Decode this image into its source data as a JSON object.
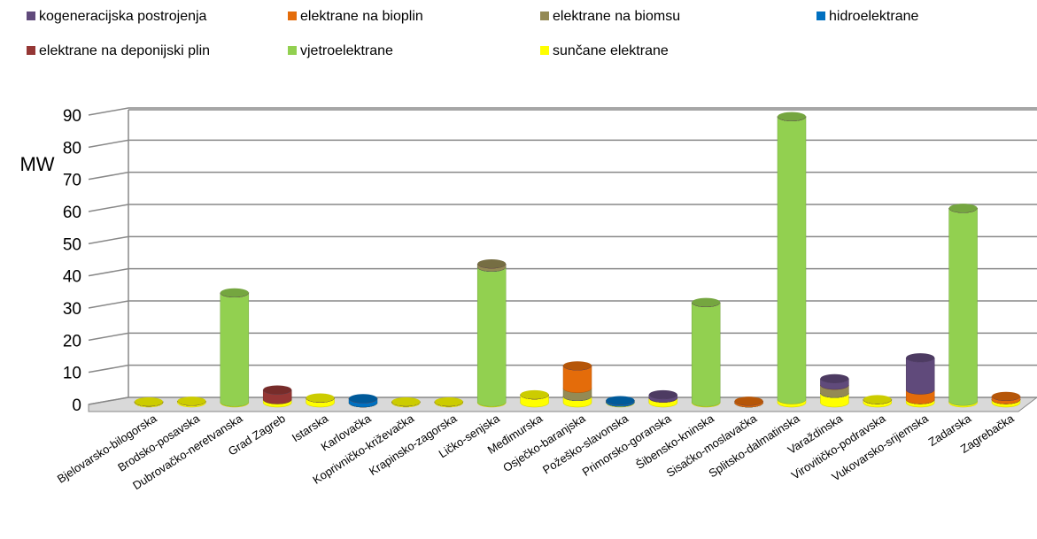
{
  "chart_data": {
    "type": "bar3d-stacked",
    "y_label": "MW",
    "categories": [
      "Bjelovarsko-bilogorska",
      "Brodsko-posavska",
      "Dubrovačko-neretvanska",
      "Grad Zagreb",
      "Istarska",
      "Karlovačka",
      "Koprivničko-križevačka",
      "Krapinsko-zagorska",
      "Ličko-senjska",
      "Međimurska",
      "Osječko-baranjska",
      "Požeško-slavonska",
      "Primorsko-goranska",
      "Šibensko-kninska",
      "Sisačko-moslavačka",
      "Splitsko-dalmatinska",
      "Varaždinska",
      "Virovitičko-podravska",
      "Vukovarsko-srijemska",
      "Zadarska",
      "Zagrebačka"
    ],
    "series": [
      {
        "name": "kogeneracijska postrojenja",
        "color": "#604a7b",
        "values": [
          0,
          0,
          0,
          0,
          0,
          0,
          0,
          0,
          0,
          0,
          0,
          0,
          1,
          0,
          0,
          0,
          2,
          0,
          10,
          0,
          0
        ]
      },
      {
        "name": "elektrane na bioplin",
        "color": "#e46c0a",
        "values": [
          0,
          0,
          0,
          0,
          0,
          0,
          0,
          0,
          0,
          0,
          7,
          0,
          0,
          0,
          0.5,
          0,
          0,
          0,
          3,
          0,
          1
        ]
      },
      {
        "name": "elektrane na biomsu",
        "color": "#948a54",
        "values": [
          0,
          0,
          0,
          0,
          0,
          0,
          0,
          0,
          1,
          0,
          2.5,
          0,
          0,
          0,
          0,
          0,
          2.5,
          0,
          0,
          0,
          0
        ]
      },
      {
        "name": "hidroelektrane",
        "color": "#0070c0",
        "values": [
          0,
          0,
          0,
          0,
          0,
          1.3,
          0,
          0,
          0,
          0,
          0,
          0.5,
          0,
          0,
          0,
          0,
          0,
          0,
          0,
          0,
          0
        ]
      },
      {
        "name": "elektrane na deponijski plin",
        "color": "#953735",
        "values": [
          0,
          0,
          0,
          3,
          0,
          0,
          0,
          0,
          0,
          0,
          0,
          0,
          0,
          0,
          0,
          0,
          0,
          0,
          0,
          0,
          0
        ]
      },
      {
        "name": "vjetroelektrane",
        "color": "#92d050",
        "values": [
          0,
          0,
          34,
          0,
          0,
          0,
          0,
          0,
          42,
          0,
          0,
          0,
          0,
          31,
          0,
          88,
          0,
          0,
          0,
          60,
          0
        ]
      },
      {
        "name": "sunčane elektrane",
        "color": "#ffff00",
        "values": [
          0.3,
          0.5,
          0.2,
          1,
          1.5,
          0,
          0.3,
          0.3,
          0.2,
          2.5,
          2,
          0.2,
          1.5,
          0.2,
          0,
          1,
          3,
          1,
          1,
          0.5,
          1
        ]
      }
    ],
    "ylim": [
      0,
      90
    ],
    "yticks": [
      0,
      10,
      20,
      30,
      40,
      50,
      60,
      70,
      80,
      90
    ],
    "grid": true
  }
}
